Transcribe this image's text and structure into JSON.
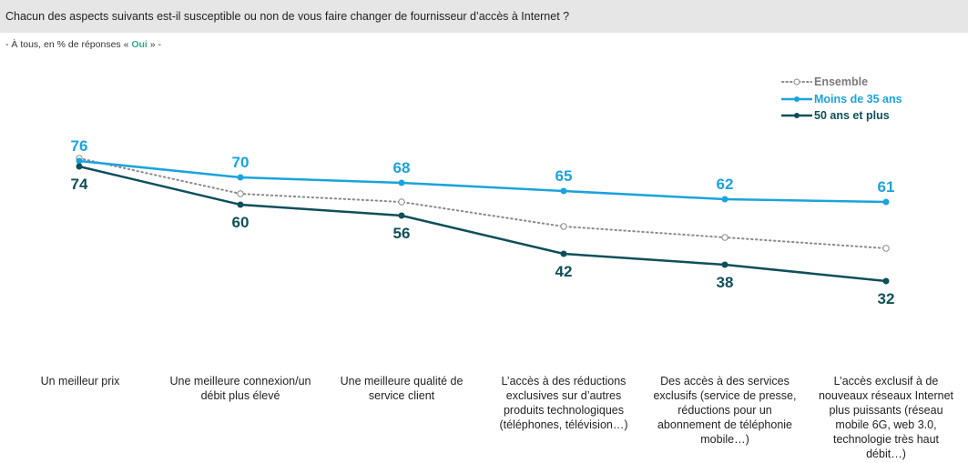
{
  "header": {
    "title": "Chacun des aspects suivants est-il susceptible ou non de vous faire changer de fournisseur d’accès à Internet ?"
  },
  "subtitle": {
    "prefix": "- À tous, en % de réponses « ",
    "highlight": "Oui",
    "suffix": " » -"
  },
  "colors": {
    "ensemble": "#8a8a8a",
    "moins35": "#1aa3dc",
    "plus50": "#0e4f5a",
    "highlight": "#2fa88f"
  },
  "chart_data": {
    "type": "line",
    "title": "Chacun des aspects suivants est-il susceptible ou non de vous faire changer de fournisseur d’accès à Internet ?",
    "subtitle": "- À tous, en % de réponses « Oui » -",
    "xlabel": "",
    "ylabel": "",
    "grid": false,
    "legend_position": "top-right",
    "categories": [
      "Un meilleur prix",
      "Une meilleure connexion/un débit plus élevé",
      "Une meilleure qualité de service client",
      "L’accès à des réductions exclusives sur d’autres produits technologiques (téléphones, télévision…)",
      "Des accès à des services exclusifs (service de presse, réductions pour un abonnement de téléphonie mobile…)",
      "L’accès exclusif à de nouveaux réseaux Internet plus puissants (réseau mobile 6G, web 3.0, technologie très haut débit…)"
    ],
    "series": [
      {
        "name": "Ensemble",
        "style": "dotted",
        "labeled": false,
        "values": [
          77,
          64,
          61,
          52,
          48,
          44
        ]
      },
      {
        "name": "Moins de 35 ans",
        "style": "solid",
        "labeled": true,
        "values": [
          76,
          70,
          68,
          65,
          62,
          61
        ]
      },
      {
        "name": "50 ans et plus",
        "style": "solid",
        "labeled": true,
        "values": [
          74,
          60,
          56,
          42,
          38,
          32
        ]
      }
    ],
    "ylim": [
      20,
      90
    ]
  },
  "legend": [
    {
      "label": "Ensemble"
    },
    {
      "label": "Moins de 35 ans"
    },
    {
      "label": "50 ans et plus"
    }
  ],
  "category_lines": [
    [
      "Un meilleur prix"
    ],
    [
      "Une meilleure connexion/un",
      "débit plus élevé"
    ],
    [
      "Une meilleure qualité de",
      "service client"
    ],
    [
      "L’accès à des réductions",
      "exclusives sur d’autres",
      "produits technologiques",
      "(téléphones, télévision…)"
    ],
    [
      "Des accès à des services",
      "exclusifs (service de presse,",
      "réductions pour un",
      "abonnement de téléphonie",
      "mobile…)"
    ],
    [
      "L’accès exclusif à de",
      "nouveaux réseaux Internet",
      "plus puissants (réseau",
      "mobile 6G, web 3.0,",
      "technologie très haut",
      "débit…)"
    ]
  ]
}
